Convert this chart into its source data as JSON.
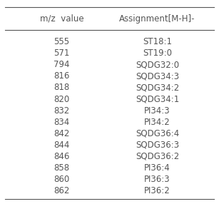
{
  "col1_header": "m/z  value",
  "col2_header": "Assignment [M−H]−",
  "rows": [
    [
      "555",
      "ST18:1"
    ],
    [
      "571",
      "ST19:0"
    ],
    [
      "794",
      "SQDG32:0"
    ],
    [
      "816",
      "SQDG34:3"
    ],
    [
      "818",
      "SQDG34:2"
    ],
    [
      "820",
      "SQDG34:1"
    ],
    [
      "832",
      "PI34:3"
    ],
    [
      "834",
      "PI34:2"
    ],
    [
      "842",
      "SQDG36:4"
    ],
    [
      "844",
      "SQDG36:3"
    ],
    [
      "846",
      "SQDG36:2"
    ],
    [
      "858",
      "PI36:4"
    ],
    [
      "860",
      "PI36:3"
    ],
    [
      "862",
      "PI36:2"
    ]
  ],
  "background_color": "#ffffff",
  "text_color": "#555555",
  "header_text_color": "#555555",
  "font_size": 8.5,
  "header_font_size": 8.5
}
